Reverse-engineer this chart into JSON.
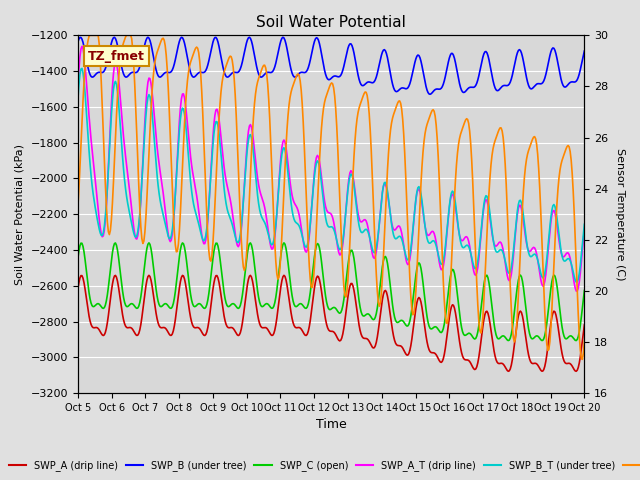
{
  "title": "Soil Water Potential",
  "xlabel": "Time",
  "ylabel_left": "Soil Water Potential (kPa)",
  "ylabel_right": "Sensor Temperature (C)",
  "ylim_left": [
    -3200,
    -1200
  ],
  "ylim_right": [
    16,
    30
  ],
  "yticks_left": [
    -3200,
    -3000,
    -2800,
    -2600,
    -2400,
    -2200,
    -2000,
    -1800,
    -1600,
    -1400,
    -1200
  ],
  "yticks_right": [
    16,
    18,
    20,
    22,
    24,
    26,
    28,
    30
  ],
  "xtick_labels": [
    "Oct 5",
    "Oct 6",
    "Oct 7",
    "Oct 8",
    "Oct 9",
    "Oct 10",
    "Oct 11",
    "Oct 12",
    "Oct 13",
    "Oct 14",
    "Oct 15",
    "Oct 16",
    "Oct 17",
    "Oct 18",
    "Oct 19",
    "Oct 20"
  ],
  "fig_bg": "#e0e0e0",
  "plot_bg": "#d8d8d8",
  "grid_color": "#ffffff",
  "annotation_label": "TZ_fmet",
  "annotation_bg": "#ffffcc",
  "annotation_border": "#cc8800",
  "colors": {
    "blue": "#0000ff",
    "red": "#cc0000",
    "green": "#00cc00",
    "magenta": "#ff00ff",
    "cyan": "#00cccc",
    "orange": "#ff8800"
  }
}
